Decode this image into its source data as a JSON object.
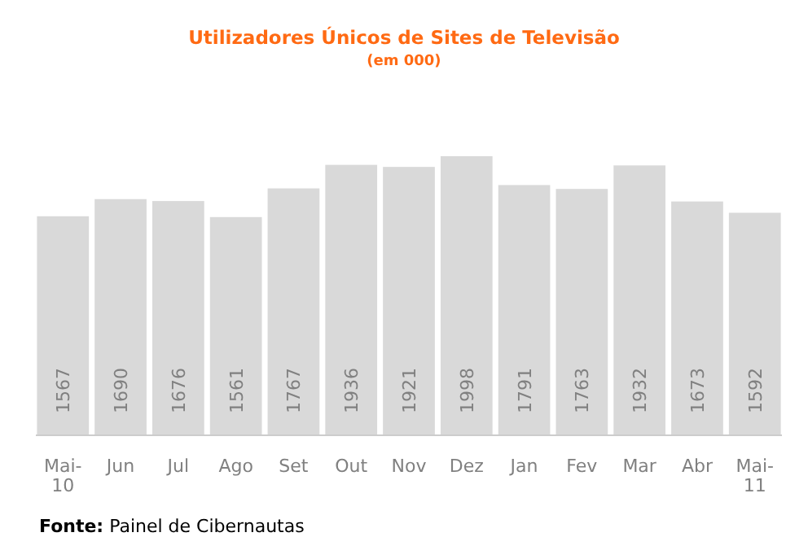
{
  "chart_data": {
    "type": "bar",
    "title": "Utilizadores Únicos de Sites de Televisão",
    "subtitle": "(em 000)",
    "categories": [
      "Mai-10",
      "Jun",
      "Jul",
      "Ago",
      "Set",
      "Out",
      "Nov",
      "Dez",
      "Jan",
      "Fev",
      "Mar",
      "Abr",
      "Mai-11"
    ],
    "values": [
      1567,
      1690,
      1676,
      1561,
      1767,
      1936,
      1921,
      1998,
      1791,
      1763,
      1932,
      1673,
      1592
    ],
    "color": "#d9d9d9",
    "data_labels": true,
    "annotations": [
      "Fonte: Painel de Cibernautas"
    ]
  }
}
